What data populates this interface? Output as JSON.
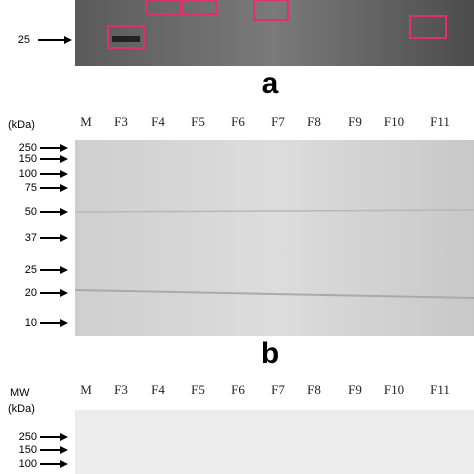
{
  "panels": [
    {
      "label": "a",
      "markers": [
        "25"
      ]
    },
    {
      "label": "b",
      "unit": "(kDa)",
      "lanes": [
        "M",
        "F3",
        "F4",
        "F5",
        "F6",
        "F7",
        "F8",
        "F9",
        "F10",
        "F11"
      ],
      "markers": [
        "250",
        "150",
        "100",
        "75",
        "50",
        "37",
        "25",
        "20",
        "10"
      ]
    },
    {
      "title": "MW",
      "unit": "(kDa)",
      "lanes": [
        "M",
        "F3",
        "F4",
        "F5",
        "F6",
        "F7",
        "F8",
        "F9",
        "F10",
        "F11"
      ],
      "markers": [
        "250",
        "150",
        "100"
      ]
    }
  ]
}
